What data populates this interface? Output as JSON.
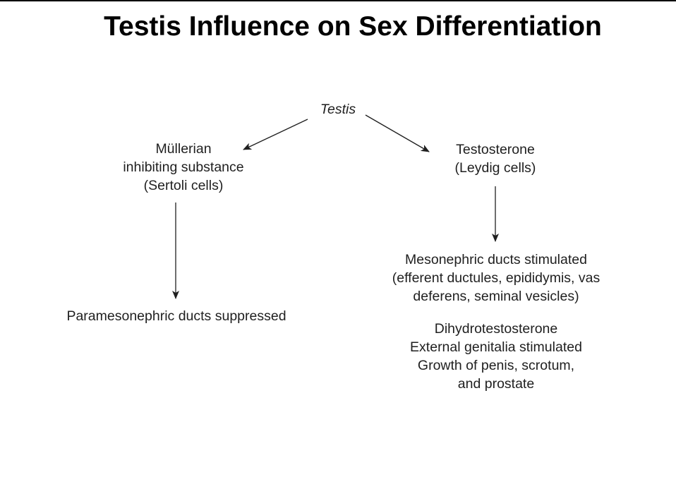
{
  "title": "Testis Influence on Sex Differentiation",
  "diagram": {
    "root": {
      "label": "Testis"
    },
    "left_branch": {
      "source": {
        "lines": [
          "Müllerian",
          "inhibiting substance",
          "(Sertoli cells)"
        ]
      },
      "effect": {
        "lines": [
          "Paramesonephric ducts suppressed"
        ]
      }
    },
    "right_branch": {
      "source": {
        "lines": [
          "Testosterone",
          "(Leydig cells)"
        ]
      },
      "effect": {
        "lines": [
          "Mesonephric ducts stimulated",
          "(efferent ductules, epididymis, vas",
          "deferens, seminal vesicles)"
        ]
      },
      "secondary_effect": {
        "lines": [
          "Dihydrotestosterone",
          "External genitalia stimulated",
          "Growth of penis, scrotum,",
          "and prostate"
        ]
      }
    }
  },
  "colors": {
    "text": "#1f1f1f",
    "arrow": "#1f1f1f",
    "title": "#000000"
  }
}
